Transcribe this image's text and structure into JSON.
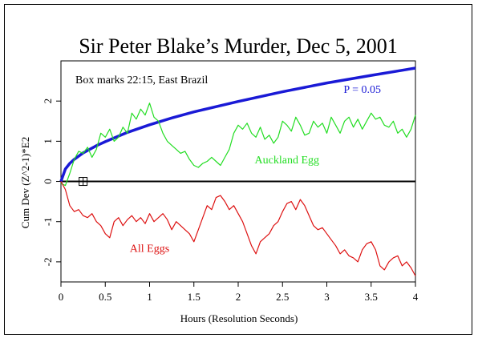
{
  "chart_data": {
    "type": "line",
    "title": "Sir Peter Blake’s Murder, Dec 5, 2001",
    "xlabel": "Hours (Resolution Seconds)",
    "ylabel": "Cum Dev (Z^2-1)*E2",
    "xlim": [
      0,
      4
    ],
    "ylim": [
      -2.5,
      3.0
    ],
    "xticks": [
      "0",
      "0.5",
      "1",
      "1.5",
      "2",
      "2.5",
      "3",
      "3.5",
      "4"
    ],
    "yticks": [
      "-2",
      "-1",
      "0",
      "1",
      "2"
    ],
    "annotation": "Box marks 22:15, East Brazil",
    "box_marker_x": 0.25,
    "box_marker_y": 0,
    "series": [
      {
        "name": "P = 0.05",
        "color": "#1a1ad6",
        "label_at": [
          3.4,
          2.2
        ],
        "x": [
          0,
          0.05,
          0.1,
          0.15,
          0.25,
          0.4,
          0.5,
          0.75,
          1.0,
          1.25,
          1.5,
          2.0,
          2.5,
          3.0,
          3.5,
          4.0
        ],
        "y": [
          0,
          0.31,
          0.45,
          0.55,
          0.71,
          0.89,
          0.99,
          1.22,
          1.41,
          1.58,
          1.73,
          1.99,
          2.23,
          2.45,
          2.64,
          2.82
        ]
      },
      {
        "name": "Auckland Egg",
        "color": "#22dd22",
        "label_at": [
          2.55,
          0.45
        ],
        "x": [
          0,
          0.05,
          0.1,
          0.15,
          0.2,
          0.25,
          0.3,
          0.35,
          0.4,
          0.45,
          0.5,
          0.55,
          0.6,
          0.65,
          0.7,
          0.75,
          0.8,
          0.85,
          0.9,
          0.95,
          1.0,
          1.05,
          1.1,
          1.15,
          1.2,
          1.25,
          1.3,
          1.35,
          1.4,
          1.45,
          1.5,
          1.55,
          1.6,
          1.65,
          1.7,
          1.75,
          1.8,
          1.85,
          1.9,
          1.95,
          2.0,
          2.05,
          2.1,
          2.15,
          2.2,
          2.25,
          2.3,
          2.35,
          2.4,
          2.45,
          2.5,
          2.55,
          2.6,
          2.65,
          2.7,
          2.75,
          2.8,
          2.85,
          2.9,
          2.95,
          3.0,
          3.05,
          3.1,
          3.15,
          3.2,
          3.25,
          3.3,
          3.35,
          3.4,
          3.45,
          3.5,
          3.55,
          3.6,
          3.65,
          3.7,
          3.75,
          3.8,
          3.85,
          3.9,
          3.95,
          4.0
        ],
        "y": [
          -0.05,
          -0.1,
          0.2,
          0.55,
          0.75,
          0.7,
          0.85,
          0.6,
          0.8,
          1.2,
          1.1,
          1.3,
          1.0,
          1.1,
          1.35,
          1.2,
          1.7,
          1.55,
          1.8,
          1.65,
          1.95,
          1.6,
          1.5,
          1.2,
          1.0,
          0.9,
          0.8,
          0.7,
          0.75,
          0.55,
          0.4,
          0.35,
          0.45,
          0.5,
          0.6,
          0.5,
          0.4,
          0.6,
          0.8,
          1.2,
          1.4,
          1.3,
          1.45,
          1.2,
          1.1,
          1.35,
          1.05,
          1.15,
          0.95,
          1.1,
          1.5,
          1.4,
          1.25,
          1.6,
          1.4,
          1.15,
          1.2,
          1.5,
          1.35,
          1.45,
          1.2,
          1.6,
          1.4,
          1.2,
          1.5,
          1.6,
          1.35,
          1.55,
          1.3,
          1.5,
          1.7,
          1.55,
          1.6,
          1.4,
          1.35,
          1.5,
          1.2,
          1.3,
          1.1,
          1.3,
          1.65
        ]
      },
      {
        "name": "All Eggs",
        "color": "#dd1111",
        "label_at": [
          1.0,
          -1.75
        ],
        "x": [
          0,
          0.05,
          0.1,
          0.15,
          0.2,
          0.25,
          0.3,
          0.35,
          0.4,
          0.45,
          0.5,
          0.55,
          0.6,
          0.65,
          0.7,
          0.75,
          0.8,
          0.85,
          0.9,
          0.95,
          1.0,
          1.05,
          1.1,
          1.15,
          1.2,
          1.25,
          1.3,
          1.35,
          1.4,
          1.45,
          1.5,
          1.55,
          1.6,
          1.65,
          1.7,
          1.75,
          1.8,
          1.85,
          1.9,
          1.95,
          2.0,
          2.05,
          2.1,
          2.15,
          2.2,
          2.25,
          2.3,
          2.35,
          2.4,
          2.45,
          2.5,
          2.55,
          2.6,
          2.65,
          2.7,
          2.75,
          2.8,
          2.85,
          2.9,
          2.95,
          3.0,
          3.05,
          3.1,
          3.15,
          3.2,
          3.25,
          3.3,
          3.35,
          3.4,
          3.45,
          3.5,
          3.55,
          3.6,
          3.65,
          3.7,
          3.75,
          3.8,
          3.85,
          3.9,
          3.95,
          4.0
        ],
        "y": [
          0,
          -0.2,
          -0.6,
          -0.75,
          -0.7,
          -0.85,
          -0.9,
          -0.8,
          -1.0,
          -1.1,
          -1.3,
          -1.4,
          -1.0,
          -0.9,
          -1.1,
          -0.95,
          -0.85,
          -1.0,
          -0.9,
          -1.05,
          -0.8,
          -1.0,
          -0.9,
          -0.8,
          -0.95,
          -1.2,
          -1.0,
          -1.1,
          -1.2,
          -1.3,
          -1.5,
          -1.2,
          -0.9,
          -0.6,
          -0.7,
          -0.4,
          -0.35,
          -0.5,
          -0.7,
          -0.6,
          -0.8,
          -1.0,
          -1.3,
          -1.6,
          -1.8,
          -1.5,
          -1.4,
          -1.3,
          -1.1,
          -1.0,
          -0.75,
          -0.55,
          -0.5,
          -0.7,
          -0.45,
          -0.6,
          -0.85,
          -1.1,
          -1.2,
          -1.15,
          -1.3,
          -1.45,
          -1.6,
          -1.8,
          -1.7,
          -1.85,
          -1.9,
          -2.0,
          -1.7,
          -1.55,
          -1.5,
          -1.7,
          -2.1,
          -2.2,
          -2.0,
          -1.9,
          -1.85,
          -2.1,
          -2.0,
          -2.15,
          -2.35
        ]
      }
    ],
    "reference_line": {
      "y": 0,
      "color": "#000000"
    }
  }
}
